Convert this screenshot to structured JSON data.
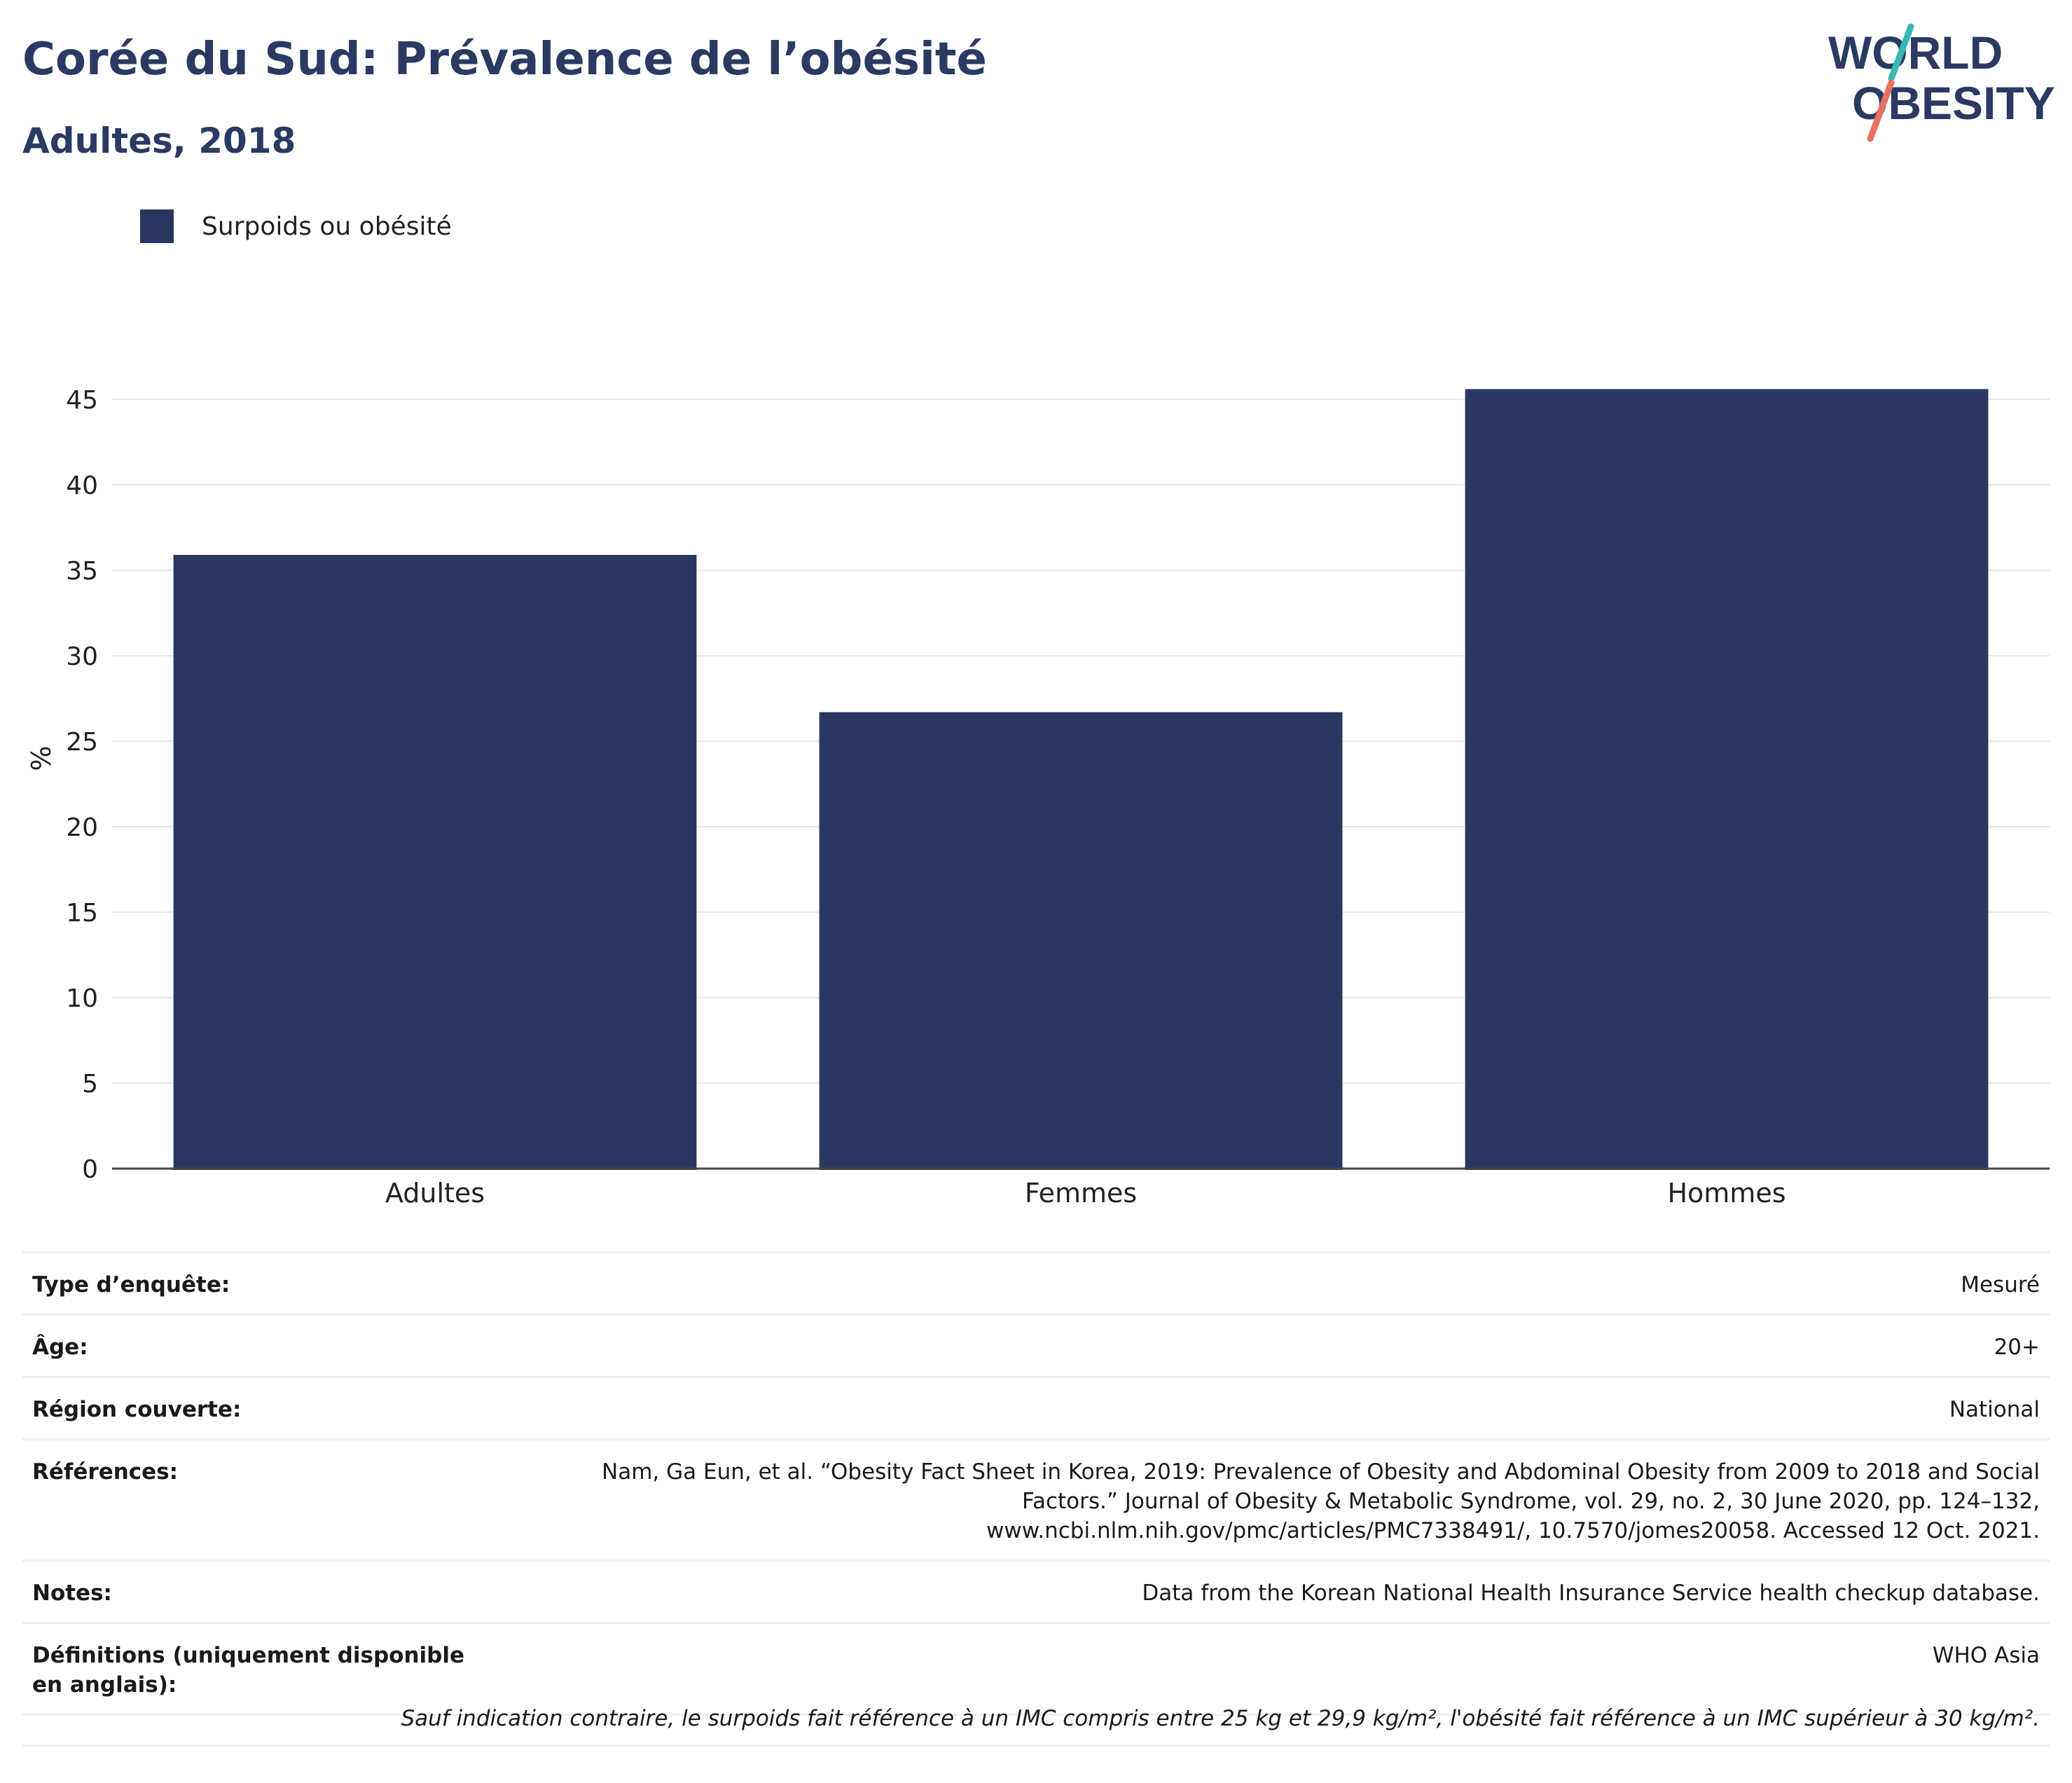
{
  "header": {
    "title": "Corée du Sud: Prévalence de l’obésité",
    "subtitle": "Adultes, 2018"
  },
  "logo": {
    "line1": "WORLD",
    "line2": "OBESITY"
  },
  "legend": {
    "label": "Surpoids ou obésité"
  },
  "colors": {
    "bar": "#2a3761",
    "title": "#2a3a63",
    "grid": "#e6e8ee",
    "logo_teal": "#36b8b4",
    "logo_coral": "#e8725f"
  },
  "chart_data": {
    "type": "bar",
    "categories": [
      "Adultes",
      "Femmes",
      "Hommes"
    ],
    "series": [
      {
        "name": "Surpoids ou obésité",
        "values": [
          35.9,
          26.7,
          45.6
        ]
      }
    ],
    "ylabel": "%",
    "ylim": [
      0,
      48
    ],
    "yticks": [
      0,
      5,
      10,
      15,
      20,
      25,
      30,
      35,
      40,
      45
    ],
    "grid": true,
    "legend_position": "top-left"
  },
  "info": [
    {
      "key": "Type d’enquête:",
      "value": "Mesuré"
    },
    {
      "key": "Âge:",
      "value": "20+"
    },
    {
      "key": "Région couverte:",
      "value": "National"
    },
    {
      "key": "Références:",
      "value": "Nam, Ga Eun, et al. “Obesity Fact Sheet in Korea, 2019: Prevalence of Obesity and Abdominal Obesity from 2009 to 2018 and Social Factors.” Journal of Obesity & Metabolic Syndrome, vol. 29, no. 2, 30 June 2020, pp. 124–132, www.ncbi.nlm.nih.gov/pmc/articles/PMC7338491/, 10.7570/jomes20058. Accessed 12 Oct. 2021."
    },
    {
      "key": "Notes:",
      "value": "Data from the Korean National Health Insurance Service health checkup database."
    },
    {
      "key": "Définitions (uniquement disponible en anglais):",
      "value": "WHO Asia"
    }
  ],
  "footnote": "Sauf indication contraire, le surpoids fait référence à un IMC compris entre 25 kg et 29,9 kg/m², l'obésité fait référence à un IMC supérieur à 30 kg/m²."
}
